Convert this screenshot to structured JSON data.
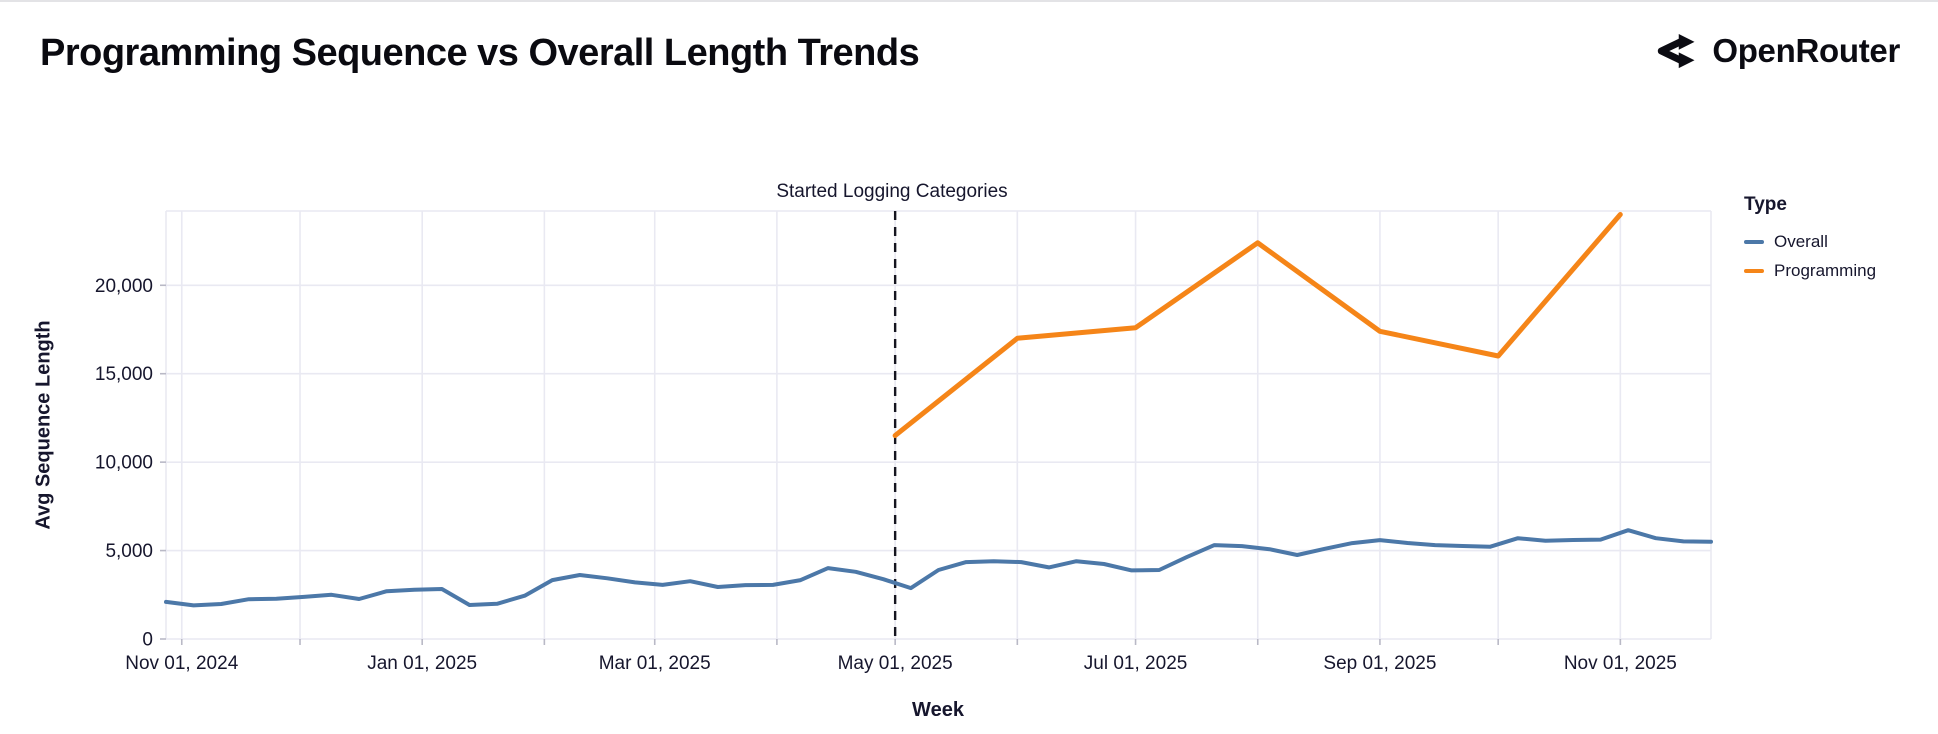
{
  "header": {
    "title": "Programming Sequence vs Overall Length Trends",
    "brand": "OpenRouter"
  },
  "chart_data": {
    "type": "line",
    "title": "Programming Sequence vs Overall Length Trends",
    "xlabel": "Week",
    "ylabel": "Avg Sequence Length",
    "x_domain": [
      "2024-10-28",
      "2025-11-24"
    ],
    "ylim": [
      0,
      24200
    ],
    "grid": true,
    "colors": {
      "overall": "#4c78a8",
      "programming": "#f58518",
      "grid": "#e9e9f2",
      "tick": "#b9b9c6",
      "text": "#16162d",
      "annotation_line": "#15151f"
    },
    "y_ticks": [
      [
        0,
        "0"
      ],
      [
        5000,
        "5,000"
      ],
      [
        10000,
        "10,000"
      ],
      [
        15000,
        "15,000"
      ],
      [
        20000,
        "20,000"
      ]
    ],
    "x_minor_ticks": [
      "2024-11-01",
      "2024-12-01",
      "2025-01-01",
      "2025-02-01",
      "2025-03-01",
      "2025-04-01",
      "2025-05-01",
      "2025-06-01",
      "2025-07-01",
      "2025-08-01",
      "2025-09-01",
      "2025-10-01",
      "2025-11-01"
    ],
    "x_tick_labels": [
      [
        "2024-11-01",
        "Nov 01, 2024"
      ],
      [
        "2025-01-01",
        "Jan 01, 2025"
      ],
      [
        "2025-03-01",
        "Mar 01, 2025"
      ],
      [
        "2025-05-01",
        "May 01, 2025"
      ],
      [
        "2025-07-01",
        "Jul 01, 2025"
      ],
      [
        "2025-09-01",
        "Sep 01, 2025"
      ],
      [
        "2025-11-01",
        "Nov 01, 2025"
      ]
    ],
    "annotation": {
      "label": "Started Logging Categories",
      "date": "2025-05-01",
      "style": "dashed"
    },
    "legend": {
      "title": "Type",
      "position": "right",
      "entries": [
        {
          "label": "Overall",
          "color": "#4c78a8"
        },
        {
          "label": "Programming",
          "color": "#f58518"
        }
      ]
    },
    "series": [
      {
        "name": "Overall",
        "color": "#4c78a8",
        "width": 4,
        "points": [
          [
            "2024-10-28",
            2100
          ],
          [
            "2024-11-04",
            1900
          ],
          [
            "2024-11-11",
            1980
          ],
          [
            "2024-11-18",
            2250
          ],
          [
            "2024-11-25",
            2280
          ],
          [
            "2024-12-02",
            2380
          ],
          [
            "2024-12-09",
            2500
          ],
          [
            "2024-12-16",
            2260
          ],
          [
            "2024-12-23",
            2700
          ],
          [
            "2024-12-30",
            2790
          ],
          [
            "2025-01-06",
            2825
          ],
          [
            "2025-01-13",
            1920
          ],
          [
            "2025-01-20",
            1990
          ],
          [
            "2025-01-27",
            2450
          ],
          [
            "2025-02-03",
            3330
          ],
          [
            "2025-02-10",
            3620
          ],
          [
            "2025-02-17",
            3430
          ],
          [
            "2025-02-24",
            3200
          ],
          [
            "2025-03-03",
            3060
          ],
          [
            "2025-03-10",
            3270
          ],
          [
            "2025-03-17",
            2940
          ],
          [
            "2025-03-24",
            3050
          ],
          [
            "2025-03-31",
            3060
          ],
          [
            "2025-04-07",
            3330
          ],
          [
            "2025-04-14",
            4010
          ],
          [
            "2025-04-21",
            3800
          ],
          [
            "2025-04-28",
            3380
          ],
          [
            "2025-05-05",
            2880
          ],
          [
            "2025-05-12",
            3900
          ],
          [
            "2025-05-19",
            4350
          ],
          [
            "2025-05-26",
            4400
          ],
          [
            "2025-06-02",
            4350
          ],
          [
            "2025-06-09",
            4050
          ],
          [
            "2025-06-16",
            4400
          ],
          [
            "2025-06-23",
            4240
          ],
          [
            "2025-06-30",
            3880
          ],
          [
            "2025-07-07",
            3900
          ],
          [
            "2025-07-14",
            4630
          ],
          [
            "2025-07-21",
            5310
          ],
          [
            "2025-07-28",
            5250
          ],
          [
            "2025-08-04",
            5080
          ],
          [
            "2025-08-11",
            4750
          ],
          [
            "2025-08-18",
            5100
          ],
          [
            "2025-08-25",
            5420
          ],
          [
            "2025-09-01",
            5590
          ],
          [
            "2025-09-08",
            5430
          ],
          [
            "2025-09-15",
            5310
          ],
          [
            "2025-09-22",
            5260
          ],
          [
            "2025-09-29",
            5220
          ],
          [
            "2025-10-06",
            5700
          ],
          [
            "2025-10-13",
            5560
          ],
          [
            "2025-10-20",
            5600
          ],
          [
            "2025-10-27",
            5620
          ],
          [
            "2025-11-03",
            6150
          ],
          [
            "2025-11-10",
            5700
          ],
          [
            "2025-11-17",
            5520
          ],
          [
            "2025-11-24",
            5500
          ]
        ]
      },
      {
        "name": "Programming",
        "color": "#f58518",
        "width": 5,
        "points": [
          [
            "2025-05-01",
            11500
          ],
          [
            "2025-06-01",
            17000
          ],
          [
            "2025-07-01",
            17600
          ],
          [
            "2025-08-01",
            22400
          ],
          [
            "2025-09-01",
            17400
          ],
          [
            "2025-10-01",
            16000
          ],
          [
            "2025-11-01",
            24000
          ]
        ]
      }
    ]
  }
}
